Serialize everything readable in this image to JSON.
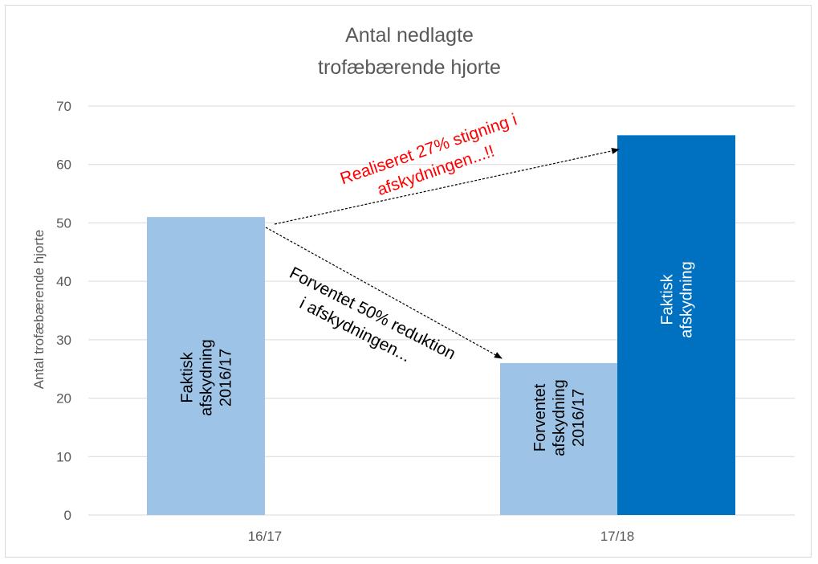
{
  "chart_data": {
    "type": "bar",
    "title": [
      "Antal nedlagte",
      "trofæbærende hjorte"
    ],
    "ylabel": "Antal trofæbærende hjorte",
    "xlabel": "",
    "ylim": [
      0,
      70
    ],
    "yticks": [
      0,
      10,
      20,
      30,
      40,
      50,
      60,
      70
    ],
    "grid": true,
    "categories": [
      "16/17",
      "17/18"
    ],
    "bars": [
      {
        "category": "16/17",
        "value": 51,
        "label": [
          "Faktisk",
          "afskydning",
          "2016/17"
        ],
        "color": "#9dc3e6"
      },
      {
        "category": "17/18",
        "value": 26,
        "label": [
          "Forventet",
          "afskydning",
          "2016/17"
        ],
        "color": "#9dc3e6"
      },
      {
        "category": "17/18",
        "value": 65,
        "label": [
          "Faktisk",
          "afskydning"
        ],
        "color": "#0070c0"
      }
    ],
    "annotations": [
      {
        "text": [
          "Realiseret 27% stigning i",
          "afskydningen...!!"
        ],
        "color": "#ff0000"
      },
      {
        "text": [
          "Forventet 50% reduktion",
          "i afskydningen..."
        ],
        "color": "#000000"
      }
    ]
  },
  "colors": {
    "grid": "#d9d9d9",
    "text": "#595959",
    "light_bar": "#9dc3e6",
    "dark_bar": "#0070c0",
    "accent_red": "#ff0000"
  }
}
